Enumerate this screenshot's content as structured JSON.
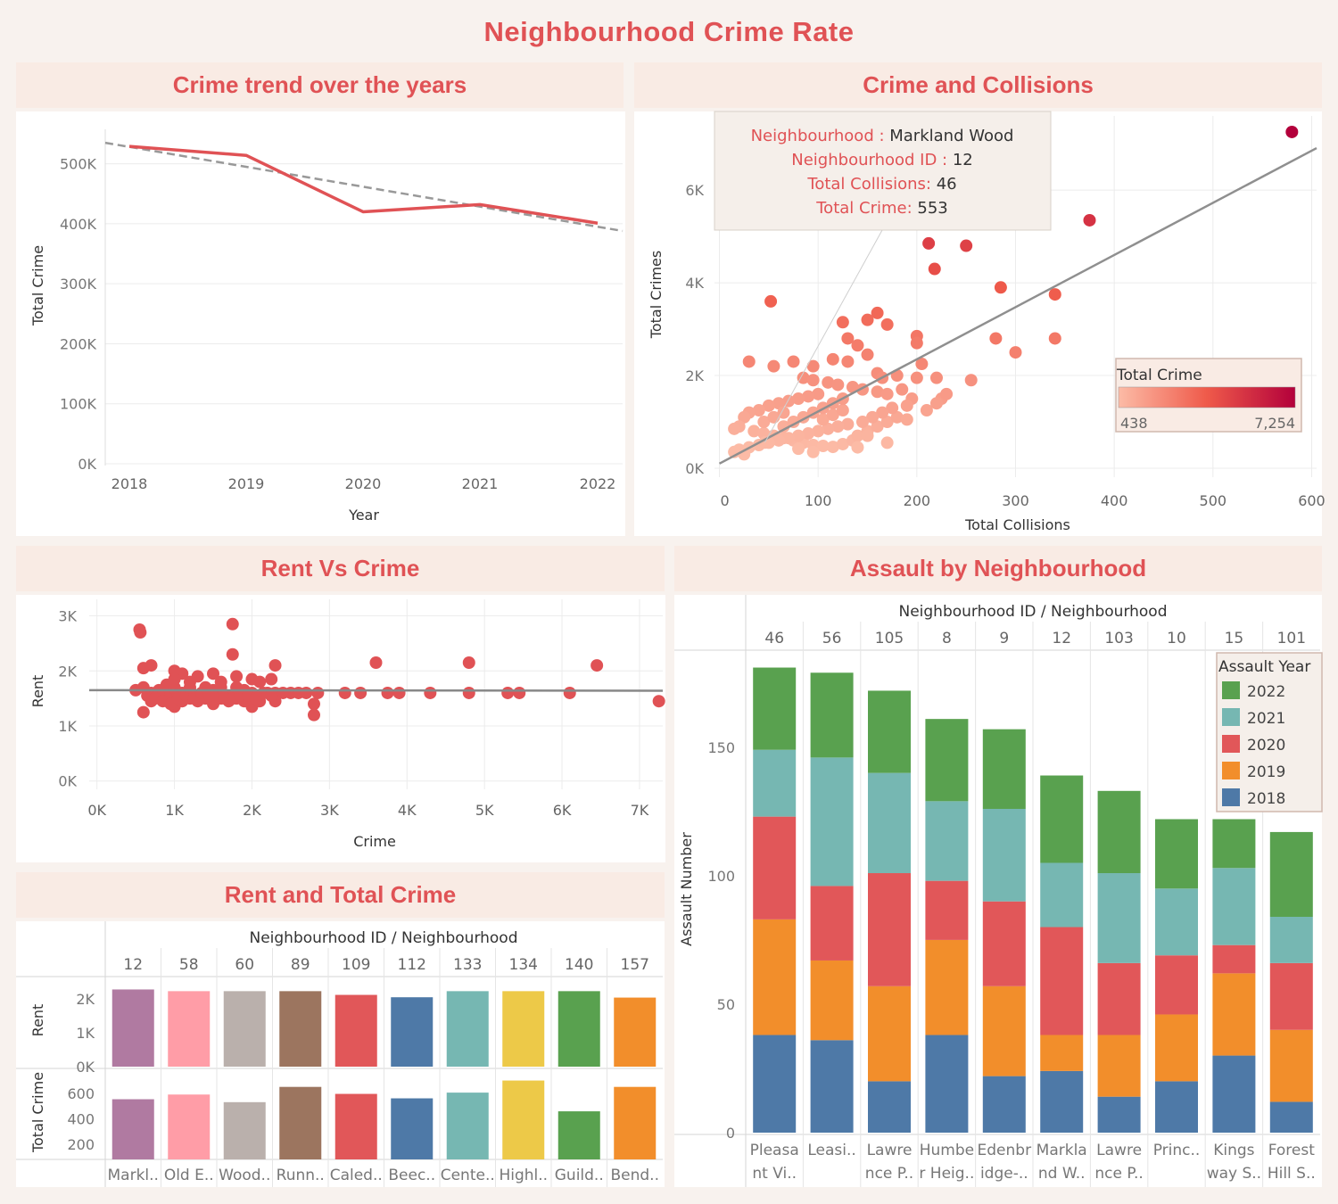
{
  "title": "Neighbourhood Crime Rate",
  "colors": {
    "accent": "#e05255",
    "header_bg": "#f9ebe4",
    "panel_bg": "#ffffff",
    "page_bg": "#f8f2ee"
  },
  "trend": {
    "header": "Crime trend over the years",
    "chart_data": {
      "type": "line",
      "x": [
        "2018",
        "2019",
        "2020",
        "2021",
        "2022"
      ],
      "series": [
        {
          "values": [
            529000,
            514000,
            420000,
            432000,
            401000
          ]
        }
      ],
      "trend_line": {
        "start": 535000,
        "end": 388000
      },
      "xlabel": "Year",
      "ylabel": "Total Crime",
      "ylim": [
        0,
        550000
      ],
      "yticks": [
        {
          "v": 0,
          "label": "0K"
        },
        {
          "v": 100000,
          "label": "100K"
        },
        {
          "v": 200000,
          "label": "200K"
        },
        {
          "v": 300000,
          "label": "300K"
        },
        {
          "v": 400000,
          "label": "400K"
        },
        {
          "v": 500000,
          "label": "500K"
        }
      ]
    }
  },
  "collisions": {
    "header": "Crime and Collisions",
    "tooltip": {
      "k1": "Neighbourhood :",
      "v1": "Markland Wood",
      "k2": "Neighbourhood ID :",
      "v2": "12",
      "k3": "Total Collisions:",
      "v3": "46",
      "k4": "Total Crime:",
      "v4": "553"
    },
    "legend": {
      "title": "Total Crime",
      "min": "438",
      "max": "7,254",
      "color_low": "#fcbba6",
      "color_high": "#b3003b"
    },
    "chart_data": {
      "type": "scatter",
      "xlabel": "Total Collisions",
      "ylabel": "Total Crimes",
      "xlim": [
        -5,
        605
      ],
      "ylim": [
        0,
        7600
      ],
      "xticks": [
        0,
        100,
        200,
        300,
        400,
        500,
        600
      ],
      "yticks": [
        {
          "v": 0,
          "label": "0K"
        },
        {
          "v": 2000,
          "label": "2K"
        },
        {
          "v": 4000,
          "label": "4K"
        },
        {
          "v": 6000,
          "label": "6K"
        }
      ],
      "trend_line": {
        "x0": 0,
        "y0": 100,
        "x1": 600,
        "y1": 6850
      },
      "points": [
        [
          580,
          7254
        ],
        [
          375,
          5350
        ],
        [
          212,
          4850
        ],
        [
          250,
          4800
        ],
        [
          52,
          3600
        ],
        [
          218,
          4300
        ],
        [
          285,
          3900
        ],
        [
          340,
          3750
        ],
        [
          160,
          3350
        ],
        [
          125,
          3150
        ],
        [
          150,
          3200
        ],
        [
          170,
          3100
        ],
        [
          200,
          2850
        ],
        [
          130,
          2800
        ],
        [
          140,
          2650
        ],
        [
          280,
          2800
        ],
        [
          340,
          2800
        ],
        [
          300,
          2500
        ],
        [
          200,
          2700
        ],
        [
          205,
          2250
        ],
        [
          150,
          2450
        ],
        [
          30,
          2300
        ],
        [
          55,
          2200
        ],
        [
          75,
          2300
        ],
        [
          95,
          2200
        ],
        [
          115,
          2350
        ],
        [
          130,
          2300
        ],
        [
          160,
          2050
        ],
        [
          180,
          2000
        ],
        [
          165,
          1950
        ],
        [
          200,
          1950
        ],
        [
          220,
          1950
        ],
        [
          255,
          1900
        ],
        [
          85,
          1950
        ],
        [
          95,
          1900
        ],
        [
          110,
          1850
        ],
        [
          120,
          1800
        ],
        [
          135,
          1750
        ],
        [
          145,
          1700
        ],
        [
          160,
          1650
        ],
        [
          170,
          1600
        ],
        [
          100,
          1600
        ],
        [
          90,
          1550
        ],
        [
          80,
          1500
        ],
        [
          70,
          1450
        ],
        [
          60,
          1400
        ],
        [
          50,
          1350
        ],
        [
          40,
          1250
        ],
        [
          30,
          1200
        ],
        [
          25,
          1100
        ],
        [
          20,
          900
        ],
        [
          15,
          850
        ],
        [
          35,
          800
        ],
        [
          45,
          750
        ],
        [
          55,
          700
        ],
        [
          65,
          650
        ],
        [
          75,
          600
        ],
        [
          85,
          550
        ],
        [
          95,
          500
        ],
        [
          105,
          480
        ],
        [
          115,
          460
        ],
        [
          125,
          520
        ],
        [
          135,
          600
        ],
        [
          140,
          700
        ],
        [
          150,
          800
        ],
        [
          160,
          900
        ],
        [
          170,
          1000
        ],
        [
          180,
          1100
        ],
        [
          190,
          1050
        ],
        [
          210,
          1250
        ],
        [
          225,
          1500
        ],
        [
          230,
          1600
        ],
        [
          220,
          1400
        ],
        [
          185,
          1700
        ],
        [
          195,
          1500
        ],
        [
          175,
          1300
        ],
        [
          165,
          1200
        ],
        [
          155,
          1100
        ],
        [
          145,
          1000
        ],
        [
          130,
          950
        ],
        [
          120,
          900
        ],
        [
          110,
          850
        ],
        [
          100,
          800
        ],
        [
          90,
          750
        ],
        [
          80,
          700
        ],
        [
          70,
          650
        ],
        [
          60,
          600
        ],
        [
          50,
          550
        ],
        [
          40,
          500
        ],
        [
          30,
          450
        ],
        [
          20,
          400
        ],
        [
          15,
          350
        ],
        [
          25,
          300
        ],
        [
          140,
          450
        ],
        [
          170,
          550
        ],
        [
          190,
          1350
        ],
        [
          105,
          1050
        ],
        [
          115,
          1150
        ],
        [
          125,
          1250
        ],
        [
          65,
          900
        ],
        [
          75,
          1000
        ],
        [
          85,
          1100
        ],
        [
          95,
          1200
        ],
        [
          105,
          1300
        ],
        [
          115,
          1400
        ],
        [
          125,
          1500
        ],
        [
          45,
          1000
        ],
        [
          55,
          1100
        ],
        [
          65,
          1200
        ],
        [
          46,
          553
        ],
        [
          95,
          350
        ],
        [
          80,
          420
        ],
        [
          150,
          700
        ]
      ]
    }
  },
  "rent_crime": {
    "header": "Rent Vs Crime",
    "chart_data": {
      "type": "scatter",
      "xlabel": "Crime",
      "ylabel": "Rent",
      "xlim": [
        -100,
        7300
      ],
      "ylim": [
        -150,
        3300
      ],
      "xticks": [
        {
          "v": 0,
          "label": "0K"
        },
        {
          "v": 1000,
          "label": "1K"
        },
        {
          "v": 2000,
          "label": "2K"
        },
        {
          "v": 3000,
          "label": "3K"
        },
        {
          "v": 4000,
          "label": "4K"
        },
        {
          "v": 5000,
          "label": "5K"
        },
        {
          "v": 6000,
          "label": "6K"
        },
        {
          "v": 7000,
          "label": "7K"
        }
      ],
      "yticks": [
        {
          "v": 0,
          "label": "0K"
        },
        {
          "v": 1000,
          "label": "1K"
        },
        {
          "v": 2000,
          "label": "2K"
        },
        {
          "v": 3000,
          "label": "3K"
        }
      ],
      "trend_line": {
        "x0": -100,
        "y0": 1650,
        "x1": 7300,
        "y1": 1640
      },
      "points": [
        [
          550,
          2750
        ],
        [
          560,
          2700
        ],
        [
          1750,
          2850
        ],
        [
          1750,
          2300
        ],
        [
          600,
          2050
        ],
        [
          700,
          2100
        ],
        [
          1000,
          2000
        ],
        [
          1100,
          1950
        ],
        [
          1300,
          1900
        ],
        [
          1500,
          1950
        ],
        [
          1800,
          1900
        ],
        [
          2000,
          1850
        ],
        [
          2300,
          2100
        ],
        [
          2250,
          1850
        ],
        [
          900,
          1750
        ],
        [
          1200,
          1800
        ],
        [
          1600,
          1800
        ],
        [
          2100,
          1800
        ],
        [
          3600,
          2150
        ],
        [
          4800,
          2150
        ],
        [
          6450,
          2100
        ],
        [
          500,
          1650
        ],
        [
          600,
          1700
        ],
        [
          700,
          1600
        ],
        [
          800,
          1650
        ],
        [
          900,
          1600
        ],
        [
          1000,
          1550
        ],
        [
          1100,
          1600
        ],
        [
          1200,
          1650
        ],
        [
          1300,
          1550
        ],
        [
          1400,
          1600
        ],
        [
          1500,
          1650
        ],
        [
          1600,
          1600
        ],
        [
          1700,
          1550
        ],
        [
          1800,
          1600
        ],
        [
          1900,
          1650
        ],
        [
          2000,
          1600
        ],
        [
          2100,
          1550
        ],
        [
          2200,
          1600
        ],
        [
          2300,
          1600
        ],
        [
          2400,
          1600
        ],
        [
          2500,
          1600
        ],
        [
          2600,
          1600
        ],
        [
          2700,
          1600
        ],
        [
          2850,
          1600
        ],
        [
          3200,
          1600
        ],
        [
          3400,
          1600
        ],
        [
          3750,
          1600
        ],
        [
          3900,
          1600
        ],
        [
          4300,
          1600
        ],
        [
          4800,
          1600
        ],
        [
          5300,
          1600
        ],
        [
          5450,
          1600
        ],
        [
          6100,
          1600
        ],
        [
          7250,
          1450
        ],
        [
          600,
          1250
        ],
        [
          1000,
          1350
        ],
        [
          1500,
          1400
        ],
        [
          2000,
          1350
        ],
        [
          2800,
          1200
        ],
        [
          2800,
          1400
        ],
        [
          700,
          1450
        ],
        [
          900,
          1500
        ],
        [
          1100,
          1450
        ],
        [
          1300,
          1450
        ],
        [
          1500,
          1500
        ],
        [
          1700,
          1450
        ],
        [
          1900,
          1450
        ],
        [
          2100,
          1450
        ],
        [
          2300,
          1450
        ],
        [
          800,
          1550
        ],
        [
          1000,
          1700
        ],
        [
          1200,
          1500
        ],
        [
          1400,
          1500
        ],
        [
          1600,
          1500
        ],
        [
          1800,
          1500
        ],
        [
          2000,
          1500
        ],
        [
          650,
          1550
        ],
        [
          750,
          1500
        ],
        [
          850,
          1450
        ],
        [
          950,
          1400
        ],
        [
          1050,
          1500
        ],
        [
          1150,
          1550
        ],
        [
          1250,
          1500
        ],
        [
          1350,
          1600
        ],
        [
          1450,
          1550
        ],
        [
          1550,
          1550
        ],
        [
          1650,
          1500
        ],
        [
          1750,
          1500
        ],
        [
          1850,
          1550
        ],
        [
          1950,
          1550
        ],
        [
          2050,
          1500
        ],
        [
          2150,
          1600
        ],
        [
          2250,
          1550
        ],
        [
          1000,
          1850
        ],
        [
          1200,
          1700
        ],
        [
          1400,
          1700
        ],
        [
          1600,
          1700
        ],
        [
          1800,
          1700
        ]
      ]
    }
  },
  "rent_total": {
    "header": "Rent and Total Crime",
    "dim_label": "Neighbourhood ID",
    "dim_label2": "Neighbourhood",
    "chart_data": {
      "type": "bar",
      "ids": [
        "12",
        "58",
        "60",
        "89",
        "109",
        "112",
        "133",
        "134",
        "140",
        "157"
      ],
      "names": [
        "Markl..",
        "Old E..",
        "Wood..",
        "Runn..",
        "Caled..",
        "Beec..",
        "Cente..",
        "Highl..",
        "Guild..",
        "Bend.."
      ],
      "colors": [
        "#b07aa1",
        "#ff9da7",
        "#bab0ac",
        "#9c755f",
        "#e15759",
        "#4e79a7",
        "#76b7b2",
        "#edc948",
        "#59a14f",
        "#f28e2b"
      ],
      "rent": [
        2280,
        2230,
        2230,
        2230,
        2120,
        2050,
        2230,
        2230,
        2230,
        2040
      ],
      "total_crime": [
        553,
        590,
        530,
        650,
        595,
        560,
        605,
        700,
        458,
        650
      ],
      "rent_label": "Rent",
      "crime_label": "Total Crime",
      "rent_ticks": [
        {
          "v": 0,
          "label": "0K"
        },
        {
          "v": 1000,
          "label": "1K"
        },
        {
          "v": 2000,
          "label": "2K"
        }
      ],
      "crime_ticks": [
        200,
        400,
        600
      ]
    }
  },
  "assault": {
    "header": "Assault by Neighbourhood",
    "dim_label": "Neighbourhood ID  /  Neighbourhood",
    "legend_title": "Assault Year",
    "chart_data": {
      "type": "bar",
      "stacked": true,
      "ylabel": "Assault Number",
      "ylim": [
        0,
        185
      ],
      "yticks": [
        0,
        50,
        100,
        150
      ],
      "ids": [
        "46",
        "56",
        "105",
        "8",
        "9",
        "12",
        "103",
        "10",
        "15",
        "101"
      ],
      "names": [
        [
          "Pleasa",
          "nt Vi.."
        ],
        [
          "Leasi..",
          ""
        ],
        [
          "Lawre",
          "nce P.."
        ],
        [
          "Humbe",
          "r Heig.."
        ],
        [
          "Edenbr",
          "idge-.."
        ],
        [
          "Markla",
          "nd W.."
        ],
        [
          "Lawre",
          "nce P.."
        ],
        [
          "Princ..",
          ""
        ],
        [
          "Kings",
          "way S.."
        ],
        [
          "Forest",
          "Hill S.."
        ]
      ],
      "series": [
        {
          "name": "2018",
          "color": "#4e79a7",
          "values": [
            38,
            36,
            20,
            38,
            22,
            24,
            14,
            20,
            30,
            12
          ]
        },
        {
          "name": "2019",
          "color": "#f28e2b",
          "values": [
            45,
            31,
            37,
            37,
            35,
            14,
            24,
            26,
            32,
            28
          ]
        },
        {
          "name": "2020",
          "color": "#e15759",
          "values": [
            40,
            29,
            44,
            23,
            33,
            42,
            28,
            23,
            11,
            26
          ]
        },
        {
          "name": "2021",
          "color": "#76b7b2",
          "values": [
            26,
            50,
            39,
            31,
            36,
            25,
            35,
            26,
            30,
            18
          ]
        },
        {
          "name": "2022",
          "color": "#59a14f",
          "values": [
            32,
            33,
            32,
            32,
            31,
            34,
            32,
            27,
            19,
            33
          ]
        }
      ]
    }
  }
}
